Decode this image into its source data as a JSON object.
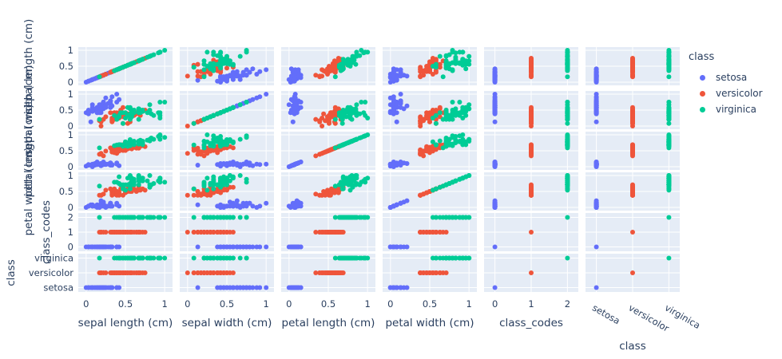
{
  "chart_data": {
    "type": "scatter",
    "title": "",
    "dimensions": [
      {
        "key": "sl",
        "label": "sepal length (cm)",
        "kind": "numeric",
        "range": [
          -0.1,
          1.1
        ],
        "ticks": [
          0,
          0.5,
          1
        ],
        "tick_labels": [
          "0",
          "0.5",
          "1"
        ]
      },
      {
        "key": "sw",
        "label": "sepal width (cm)",
        "kind": "numeric",
        "range": [
          -0.1,
          1.1
        ],
        "ticks": [
          0,
          0.5,
          1
        ],
        "tick_labels": [
          "0",
          "0.5",
          "1"
        ]
      },
      {
        "key": "pl",
        "label": "petal length (cm)",
        "kind": "numeric",
        "range": [
          -0.1,
          1.1
        ],
        "ticks": [
          0,
          0.5,
          1
        ],
        "tick_labels": [
          "0",
          "0.5",
          "1"
        ]
      },
      {
        "key": "pw",
        "label": "petal width (cm)",
        "kind": "numeric",
        "range": [
          -0.1,
          1.1
        ],
        "ticks": [
          0,
          0.5,
          1
        ],
        "tick_labels": [
          "0",
          "0.5",
          "1"
        ]
      },
      {
        "key": "code",
        "label": "class_codes",
        "kind": "numeric",
        "range": [
          -0.3,
          2.3
        ],
        "ticks": [
          0,
          1,
          2
        ],
        "tick_labels": [
          "0",
          "1",
          "2"
        ]
      },
      {
        "key": "cls",
        "label": "class",
        "kind": "categorical",
        "range": [
          -0.3,
          2.3
        ],
        "ticks": [
          0,
          1,
          2
        ],
        "tick_labels": [
          "setosa",
          "versicolor",
          "virginica"
        ]
      }
    ],
    "legend": {
      "title": "class",
      "position": "top-right"
    },
    "series": [
      {
        "name": "setosa",
        "color": "#636efa",
        "code": 0,
        "sl": [
          0.22,
          0.17,
          0.11,
          0.08,
          0.19,
          0.31,
          0.08,
          0.19,
          0.03,
          0.17,
          0.31,
          0.14,
          0.14,
          0.0,
          0.42,
          0.39,
          0.31,
          0.22,
          0.39,
          0.22,
          0.31,
          0.22,
          0.08,
          0.22,
          0.14,
          0.19,
          0.19,
          0.25,
          0.25,
          0.11,
          0.14,
          0.31,
          0.25,
          0.33,
          0.17,
          0.19,
          0.33,
          0.17,
          0.03,
          0.22,
          0.19,
          0.06,
          0.03,
          0.19,
          0.22,
          0.14,
          0.22,
          0.08,
          0.28,
          0.19
        ],
        "sw": [
          0.63,
          0.42,
          0.5,
          0.46,
          0.67,
          0.79,
          0.58,
          0.58,
          0.38,
          0.46,
          0.71,
          0.58,
          0.42,
          0.42,
          0.83,
          1.0,
          0.79,
          0.63,
          0.75,
          0.75,
          0.58,
          0.71,
          0.67,
          0.54,
          0.58,
          0.42,
          0.58,
          0.63,
          0.58,
          0.5,
          0.46,
          0.58,
          0.88,
          0.92,
          0.46,
          0.5,
          0.63,
          0.67,
          0.42,
          0.58,
          0.63,
          0.13,
          0.5,
          0.63,
          0.75,
          0.42,
          0.75,
          0.5,
          0.71,
          0.54
        ],
        "pl": [
          0.07,
          0.07,
          0.05,
          0.08,
          0.07,
          0.12,
          0.07,
          0.08,
          0.07,
          0.08,
          0.08,
          0.1,
          0.07,
          0.02,
          0.03,
          0.08,
          0.05,
          0.07,
          0.12,
          0.08,
          0.12,
          0.08,
          0.0,
          0.12,
          0.15,
          0.1,
          0.1,
          0.08,
          0.07,
          0.1,
          0.1,
          0.08,
          0.08,
          0.07,
          0.08,
          0.03,
          0.05,
          0.07,
          0.05,
          0.08,
          0.05,
          0.05,
          0.05,
          0.1,
          0.15,
          0.07,
          0.1,
          0.07,
          0.08,
          0.07
        ],
        "pw": [
          0.04,
          0.04,
          0.04,
          0.04,
          0.04,
          0.13,
          0.08,
          0.04,
          0.04,
          0.0,
          0.04,
          0.04,
          0.0,
          0.0,
          0.04,
          0.13,
          0.13,
          0.08,
          0.08,
          0.08,
          0.04,
          0.13,
          0.04,
          0.17,
          0.04,
          0.04,
          0.13,
          0.04,
          0.04,
          0.04,
          0.04,
          0.13,
          0.0,
          0.04,
          0.04,
          0.04,
          0.04,
          0.0,
          0.04,
          0.04,
          0.08,
          0.08,
          0.04,
          0.21,
          0.13,
          0.08,
          0.04,
          0.04,
          0.04,
          0.04
        ]
      },
      {
        "name": "versicolor",
        "color": "#ef553b",
        "code": 1,
        "sl": [
          0.75,
          0.58,
          0.72,
          0.33,
          0.61,
          0.39,
          0.56,
          0.17,
          0.64,
          0.25,
          0.19,
          0.44,
          0.47,
          0.5,
          0.36,
          0.67,
          0.36,
          0.42,
          0.53,
          0.36,
          0.44,
          0.5,
          0.56,
          0.5,
          0.58,
          0.64,
          0.69,
          0.67,
          0.47,
          0.39,
          0.33,
          0.33,
          0.42,
          0.47,
          0.31,
          0.47,
          0.67,
          0.56,
          0.36,
          0.33,
          0.33,
          0.5,
          0.42,
          0.19,
          0.36,
          0.39,
          0.39,
          0.53,
          0.22,
          0.39
        ],
        "sw": [
          0.5,
          0.5,
          0.46,
          0.13,
          0.33,
          0.33,
          0.54,
          0.17,
          0.38,
          0.29,
          0.0,
          0.42,
          0.08,
          0.38,
          0.38,
          0.46,
          0.42,
          0.29,
          0.08,
          0.21,
          0.5,
          0.33,
          0.21,
          0.33,
          0.38,
          0.42,
          0.33,
          0.42,
          0.38,
          0.25,
          0.17,
          0.17,
          0.29,
          0.29,
          0.42,
          0.58,
          0.46,
          0.13,
          0.42,
          0.21,
          0.25,
          0.42,
          0.25,
          0.13,
          0.29,
          0.42,
          0.38,
          0.38,
          0.21,
          0.33
        ],
        "pl": [
          0.63,
          0.59,
          0.66,
          0.51,
          0.61,
          0.59,
          0.63,
          0.39,
          0.61,
          0.49,
          0.42,
          0.54,
          0.51,
          0.63,
          0.44,
          0.58,
          0.59,
          0.53,
          0.59,
          0.49,
          0.64,
          0.51,
          0.66,
          0.63,
          0.56,
          0.58,
          0.64,
          0.68,
          0.59,
          0.42,
          0.47,
          0.46,
          0.49,
          0.69,
          0.59,
          0.59,
          0.63,
          0.58,
          0.53,
          0.51,
          0.58,
          0.61,
          0.51,
          0.39,
          0.54,
          0.54,
          0.54,
          0.56,
          0.34,
          0.53
        ],
        "pw": [
          0.54,
          0.58,
          0.58,
          0.5,
          0.58,
          0.5,
          0.63,
          0.38,
          0.5,
          0.54,
          0.38,
          0.58,
          0.38,
          0.54,
          0.5,
          0.54,
          0.58,
          0.38,
          0.58,
          0.42,
          0.71,
          0.5,
          0.58,
          0.46,
          0.5,
          0.54,
          0.54,
          0.67,
          0.58,
          0.38,
          0.42,
          0.38,
          0.46,
          0.63,
          0.58,
          0.63,
          0.58,
          0.5,
          0.5,
          0.5,
          0.46,
          0.54,
          0.46,
          0.38,
          0.5,
          0.46,
          0.5,
          0.5,
          0.42,
          0.5
        ]
      },
      {
        "name": "virginica",
        "color": "#00cc96",
        "code": 2,
        "sl": [
          0.56,
          0.42,
          0.78,
          0.56,
          0.61,
          0.92,
          0.17,
          0.83,
          0.67,
          0.81,
          0.61,
          0.58,
          0.69,
          0.39,
          0.42,
          0.58,
          0.61,
          0.94,
          0.94,
          0.47,
          0.72,
          0.36,
          0.94,
          0.56,
          0.67,
          0.81,
          0.53,
          0.5,
          0.58,
          0.81,
          0.86,
          1.0,
          0.58,
          0.56,
          0.5,
          0.94,
          0.56,
          0.58,
          0.47,
          0.72,
          0.67,
          0.72,
          0.42,
          0.69,
          0.67,
          0.67,
          0.56,
          0.61,
          0.53,
          0.44
        ],
        "sw": [
          0.54,
          0.29,
          0.42,
          0.38,
          0.42,
          0.42,
          0.21,
          0.38,
          0.21,
          0.67,
          0.5,
          0.29,
          0.42,
          0.21,
          0.33,
          0.5,
          0.42,
          0.75,
          0.25,
          0.08,
          0.5,
          0.33,
          0.33,
          0.29,
          0.54,
          0.5,
          0.33,
          0.42,
          0.33,
          0.42,
          0.33,
          0.75,
          0.33,
          0.33,
          0.25,
          0.42,
          0.58,
          0.46,
          0.42,
          0.46,
          0.46,
          0.46,
          0.29,
          0.5,
          0.54,
          0.42,
          0.21,
          0.42,
          0.58,
          0.42
        ],
        "pl": [
          0.85,
          0.69,
          0.83,
          0.78,
          0.8,
          0.95,
          0.59,
          0.9,
          0.8,
          0.86,
          0.69,
          0.73,
          0.76,
          0.68,
          0.69,
          0.73,
          0.76,
          0.97,
          1.0,
          0.68,
          0.8,
          0.66,
          0.97,
          0.66,
          0.8,
          0.85,
          0.64,
          0.66,
          0.78,
          0.81,
          0.86,
          0.92,
          0.78,
          0.69,
          0.78,
          0.86,
          0.78,
          0.76,
          0.64,
          0.75,
          0.78,
          0.69,
          0.69,
          0.83,
          0.8,
          0.71,
          0.68,
          0.71,
          0.75,
          0.69
        ],
        "pw": [
          1.0,
          0.75,
          0.83,
          0.71,
          0.88,
          0.83,
          0.67,
          0.71,
          0.71,
          1.0,
          0.79,
          0.75,
          0.83,
          0.79,
          0.96,
          0.92,
          0.71,
          0.88,
          0.92,
          0.58,
          0.92,
          0.79,
          0.79,
          0.71,
          0.83,
          0.71,
          0.71,
          0.71,
          0.83,
          0.63,
          0.75,
          0.79,
          0.88,
          0.58,
          0.54,
          0.92,
          0.96,
          0.71,
          0.71,
          0.83,
          0.96,
          0.92,
          0.75,
          0.92,
          1.0,
          0.92,
          0.75,
          0.79,
          0.92,
          0.71
        ]
      }
    ]
  }
}
